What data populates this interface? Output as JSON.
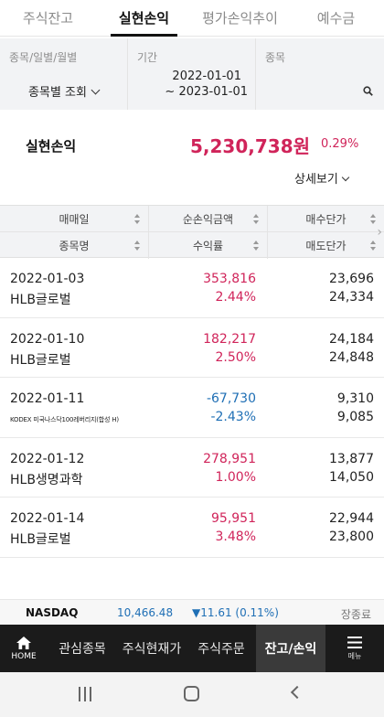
{
  "tabs": [
    "주식잔고",
    "실현손익",
    "평가손익추이",
    "예수금"
  ],
  "active_tab": 1,
  "filters": {
    "type_label": "종목/일별/월별",
    "type_value": "종목별 조회",
    "period_label": "기간",
    "period_from": "2022-01-01",
    "period_to": "~ 2023-01-01",
    "stock_label": "종목"
  },
  "summary": {
    "label": "실현손익",
    "amount": "5,230,738원",
    "rate": "0.29%",
    "detail": "상세보기"
  },
  "table": {
    "headers_row1": [
      "매매일",
      "순손익금액",
      "매수단가"
    ],
    "headers_row2": [
      "종목명",
      "수익률",
      "매도단가"
    ],
    "rows": [
      {
        "date": "2022-01-03",
        "name": "HLB글로벌",
        "pnl": "353,816",
        "rate": "2.44%",
        "buy": "23,696",
        "sell": "24,334",
        "sign": "pos"
      },
      {
        "date": "2022-01-10",
        "name": "HLB글로벌",
        "pnl": "182,217",
        "rate": "2.50%",
        "buy": "24,184",
        "sell": "24,848",
        "sign": "pos"
      },
      {
        "date": "2022-01-11",
        "name": "KODEX 미국나스닥100레버리지(합성 H)",
        "pnl": "-67,730",
        "rate": "-2.43%",
        "buy": "9,310",
        "sell": "9,085",
        "sign": "neg"
      },
      {
        "date": "2022-01-12",
        "name": "HLB생명과학",
        "pnl": "278,951",
        "rate": "1.00%",
        "buy": "13,877",
        "sell": "14,050",
        "sign": "pos"
      },
      {
        "date": "2022-01-14",
        "name": "HLB글로벌",
        "pnl": "95,951",
        "rate": "3.48%",
        "buy": "22,944",
        "sell": "23,800",
        "sign": "pos"
      }
    ]
  },
  "ticker": {
    "name": "NASDAQ",
    "value": "10,466.48",
    "change": "▼11.61 (0.11%)",
    "status": "장종료"
  },
  "bottom_nav": {
    "home": "HOME",
    "items": [
      "관심종목",
      "주식현재가",
      "주식주문",
      "잔고/손익"
    ],
    "menu": "메뉴"
  },
  "colors": {
    "positive": "#d0245a",
    "negative": "#1f6fb5"
  }
}
